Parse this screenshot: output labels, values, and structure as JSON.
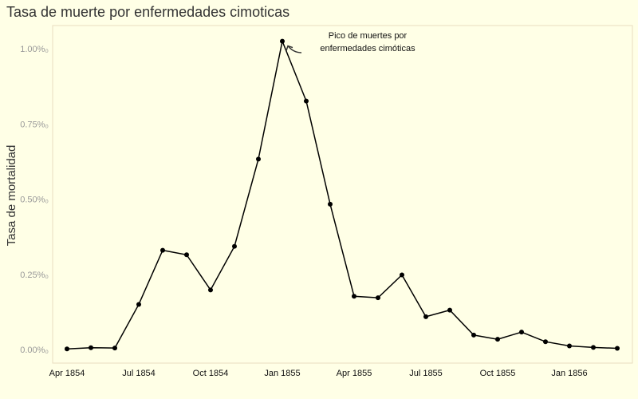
{
  "chart_data": {
    "type": "line",
    "title": "Tasa de muerte por enfermedades cimoticas",
    "xlabel": "",
    "ylabel": "Tasa de mortalidad",
    "x": [
      "1854-04",
      "1854-05",
      "1854-06",
      "1854-07",
      "1854-08",
      "1854-09",
      "1854-10",
      "1854-11",
      "1854-12",
      "1855-01",
      "1855-02",
      "1855-03",
      "1855-04",
      "1855-05",
      "1855-06",
      "1855-07",
      "1855-08",
      "1855-09",
      "1855-10",
      "1855-11",
      "1855-12",
      "1856-01",
      "1856-02",
      "1856-03"
    ],
    "series": [
      {
        "values": [
          2e-05,
          6e-05,
          5e-05,
          0.0015,
          0.0033,
          0.00315,
          0.00198,
          0.00343,
          0.00633,
          0.01025,
          0.00826,
          0.00483,
          0.00177,
          0.00172,
          0.00248,
          0.00109,
          0.00131,
          0.00048,
          0.00034,
          0.00058,
          0.00026,
          0.00012,
          7e-05,
          4e-05
        ],
        "color": "#000000"
      }
    ],
    "x_ticks": [
      "Apr 1854",
      "Jul 1854",
      "Oct 1854",
      "Jan 1855",
      "Apr 1855",
      "Jul 1855",
      "Oct 1855",
      "Jan 1856"
    ],
    "y_ticks": [
      "0.00%₀",
      "0.25%₀",
      "0.50%₀",
      "0.75%₀",
      "1.00%₀"
    ],
    "y_tick_values": [
      0,
      0.0025,
      0.005,
      0.0075,
      0.01
    ],
    "ylim": [
      0,
      0.0105
    ],
    "grid": false,
    "annotation": {
      "text": [
        "Pico de muertes por",
        "enfermedades cimóticas"
      ],
      "target_index": 9
    },
    "colors": {
      "background": "#FFFFE6",
      "panel_border": "#E8DCC0",
      "tick_text": "#999999",
      "line": "#000000"
    }
  }
}
